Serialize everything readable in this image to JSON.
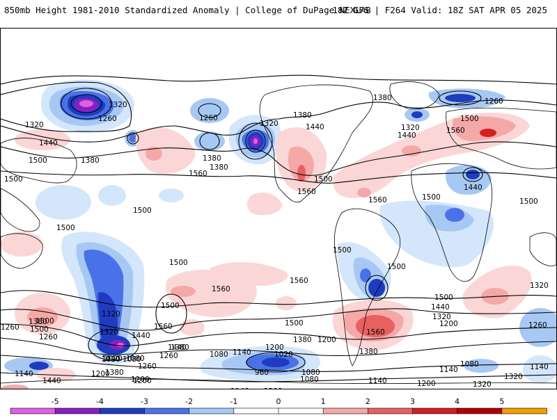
{
  "header": {
    "title_left": "850mb Height 1981-2010 Standardized Anomaly | College of DuPage NEXLAB",
    "title_right": "18Z GFS | F264 Valid: 18Z SAT APR 05 2025"
  },
  "colors": {
    "neg5": "#e060e0",
    "neg4": "#8a1fc0",
    "neg3": "#1f3cc0",
    "neg2": "#4a72e8",
    "neg1": "#a8c8f4",
    "neg05": "#d4e6fb",
    "pos05": "#fbd6d6",
    "pos1": "#f5a8a8",
    "pos2": "#e86060",
    "pos3": "#d02020",
    "pos4": "#b00000",
    "pos5": "#f0a000",
    "land": "#000000",
    "contour": "#000000"
  },
  "colorbar": {
    "ticks": [
      "-5",
      "-4",
      "-3",
      "-2",
      "-1",
      "0",
      "1",
      "2",
      "3",
      "4",
      "5"
    ]
  },
  "contour_labels": [
    "1320",
    "1260",
    "1320",
    "1260",
    "1440",
    "1500",
    "1380",
    "1380",
    "1560",
    "1380",
    "1500",
    "1320",
    "1380",
    "1440",
    "1500",
    "1560",
    "1500",
    "1500",
    "1380",
    "1260",
    "1500",
    "1320",
    "1440",
    "1560",
    "1560",
    "1500",
    "1440",
    "1500",
    "1500",
    "1500",
    "1500",
    "1500",
    "1560",
    "1560",
    "1500",
    "1440",
    "1500",
    "1560",
    "1500",
    "1320",
    "1260",
    "1320",
    "1440",
    "1200",
    "1260",
    "1380",
    "1500",
    "1560",
    "1440",
    "1380",
    "1320",
    "1140",
    "1200",
    "1380",
    "1200",
    "1260",
    "1080",
    "1140",
    "1020",
    "1080",
    "960",
    "1020",
    "1080",
    "1200",
    "1260",
    "1140",
    "1200",
    "1320",
    "1380",
    "1140",
    "1260",
    "1200",
    "1140",
    "1080",
    "1320",
    "1200",
    "1320",
    "1140",
    "1080",
    "1440",
    "1200",
    "1380",
    "1260",
    "1320",
    "1020",
    "1080",
    "1260",
    "1140"
  ]
}
